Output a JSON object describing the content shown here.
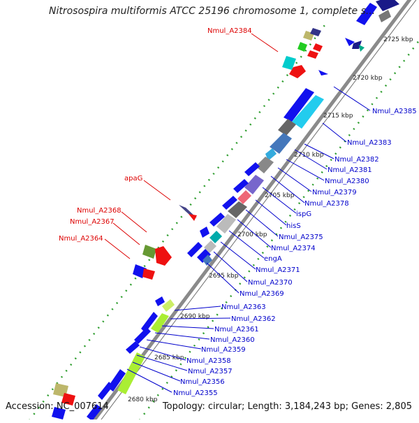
{
  "title": "Nitrosospira multiformis ATCC 25196 chromosome 1, complete s...",
  "accession": "Accession: NC_007614",
  "summary": "Topology: circular; Length: 3,184,243 bp; Genes: 2,805",
  "colors": {
    "label_red": "#dd0000",
    "label_blue": "#0000cc",
    "backbone": "#8a8a8a",
    "tick": "#2f9e2f"
  },
  "scale_labels": [
    "2680 kbp",
    "2685 kbp",
    "2690 kbp",
    "2695 kbp",
    "2700 kbp",
    "2705 kbp",
    "2710 kbp",
    "2715 kbp",
    "2720 kbp",
    "2725 kbp"
  ],
  "forward_labels": [
    "Nmul_A2384",
    "apaG",
    "Nmul_A2368",
    "Nmul_A2367",
    "Nmul_A2364"
  ],
  "reverse_labels": [
    "Nmul_A2385",
    "Nmul_A2383",
    "Nmul_A2382",
    "Nmul_A2381",
    "Nmul_A2380",
    "Nmul_A2379",
    "Nmul_A2378",
    "ispG",
    "hisS",
    "Nmul_A2375",
    "Nmul_A2374",
    "engA",
    "Nmul_A2371",
    "Nmul_A2370",
    "Nmul_A2369",
    "Nmul_A2363",
    "Nmul_A2362",
    "Nmul_A2361",
    "Nmul_A2360",
    "Nmul_A2359",
    "Nmul_A2358",
    "Nmul_A2357",
    "Nmul_A2356",
    "Nmul_A2355"
  ]
}
